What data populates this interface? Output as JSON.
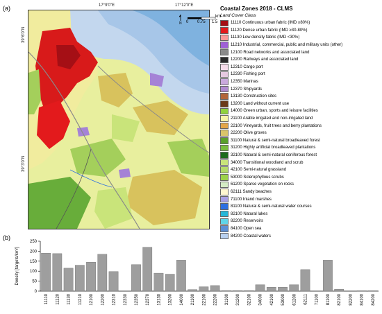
{
  "panels": {
    "a": "(a)",
    "b": "(b)"
  },
  "map": {
    "coords": {
      "top_left": "17°9'0\"E",
      "top_right": "17°12'0\"E",
      "left_top": "39°6'0\"N",
      "left_mid": "39°3'0\"N"
    },
    "scale": {
      "unit": "km",
      "ticks": [
        "0",
        "0.75",
        "1.5"
      ],
      "north": "N"
    },
    "colors": {
      "sea": "#c3d7ee",
      "open_sea": "#7fb2df",
      "urban": "#d81a1a",
      "arable": "#f2ef9c",
      "olive": "#d8c25d",
      "grassland": "#a4cf5b",
      "forest": "#68ad3a",
      "industrial": "#a583d6"
    }
  },
  "legend": {
    "title": "Coastal Zones 2018 - CLMS",
    "subtitle": "Land Cover Class",
    "items": [
      {
        "label": "11110 Continuous urban fabric (IMD ≥80%)",
        "color": "#a50f15"
      },
      {
        "label": "11120 Dense urban fabric (IMD ≥30-80%)",
        "color": "#e31a1c"
      },
      {
        "label": "11130 Low density fabric (IMD <30%)",
        "color": "#fb9a99"
      },
      {
        "label": "11210 Industrial, commercial, public and military units (other)",
        "color": "#9f5fd6"
      },
      {
        "label": "12100 Road networks and associated land",
        "color": "#8a8a8a"
      },
      {
        "label": "12200 Railways and associated land",
        "color": "#2a2a2a"
      },
      {
        "label": "12310 Cargo port",
        "color": "#f6dcea"
      },
      {
        "label": "12330 Fishing port",
        "color": "#e6c9e0"
      },
      {
        "label": "12350 Marinas",
        "color": "#c9a9dd"
      },
      {
        "label": "12370 Shipyards",
        "color": "#b08bd0"
      },
      {
        "label": "13130 Construction sites",
        "color": "#b2653a"
      },
      {
        "label": "13200 Land without current use",
        "color": "#6b3a1a"
      },
      {
        "label": "14000 Green urban, sports and leisure facilities",
        "color": "#8fd13f"
      },
      {
        "label": "21100 Arable irrigated and non-irrigated land",
        "color": "#f6f3a8"
      },
      {
        "label": "22100 Vineyards, fruit trees and berry plantations",
        "color": "#e3a64a"
      },
      {
        "label": "22200 Olive groves",
        "color": "#d9c46a"
      },
      {
        "label": "31100 Natural & semi-natural broadleaved forest",
        "color": "#5aa02c"
      },
      {
        "label": "31200 Highly artificial broadleaved plantations",
        "color": "#7bbd3f"
      },
      {
        "label": "32100 Natural & semi-natural coniferous forest",
        "color": "#1e6b1e"
      },
      {
        "label": "34000 Transitional woodland and scrub",
        "color": "#c9e47a"
      },
      {
        "label": "42100 Semi-natural grassland",
        "color": "#b5db6a"
      },
      {
        "label": "53000 Sclerophyllous scrubs",
        "color": "#9dd24a"
      },
      {
        "label": "61200 Sparse vegetation on rocks",
        "color": "#d4ecc4"
      },
      {
        "label": "62111 Sandy beaches",
        "color": "#fff7d0"
      },
      {
        "label": "71100 Inland marshes",
        "color": "#a8a0e6"
      },
      {
        "label": "81100 Natural & semi-natural water courses",
        "color": "#2e6fe0"
      },
      {
        "label": "82100 Natural lakes",
        "color": "#27b6d8"
      },
      {
        "label": "82200 Reservoirs",
        "color": "#5fd5e8"
      },
      {
        "label": "84100 Open sea",
        "color": "#5c8fd6"
      },
      {
        "label": "84200 Coastal waters",
        "color": "#b8d0f0"
      }
    ]
  },
  "chart_data": {
    "type": "bar",
    "ylabel": "Density [targets/km²]",
    "ylim": [
      0,
      250
    ],
    "yticks": [
      "0",
      "50",
      "100",
      "150",
      "200",
      "250"
    ],
    "categories": [
      "11110",
      "11120",
      "11130",
      "11210",
      "12100",
      "12200",
      "12310",
      "12330",
      "12350",
      "12370",
      "13130",
      "13200",
      "14000",
      "21100",
      "22100",
      "22200",
      "31100",
      "31200",
      "32100",
      "34000",
      "42100",
      "53000",
      "61200",
      "62111",
      "71100",
      "81100",
      "82100",
      "82200",
      "84100",
      "84200"
    ],
    "values": [
      190,
      188,
      115,
      130,
      145,
      185,
      98,
      0,
      133,
      220,
      90,
      85,
      155,
      8,
      22,
      28,
      3,
      3,
      3,
      32,
      20,
      20,
      32,
      108,
      0,
      155,
      10,
      0,
      2,
      2
    ],
    "bar_color": "#9e9e9e",
    "grid": false
  }
}
